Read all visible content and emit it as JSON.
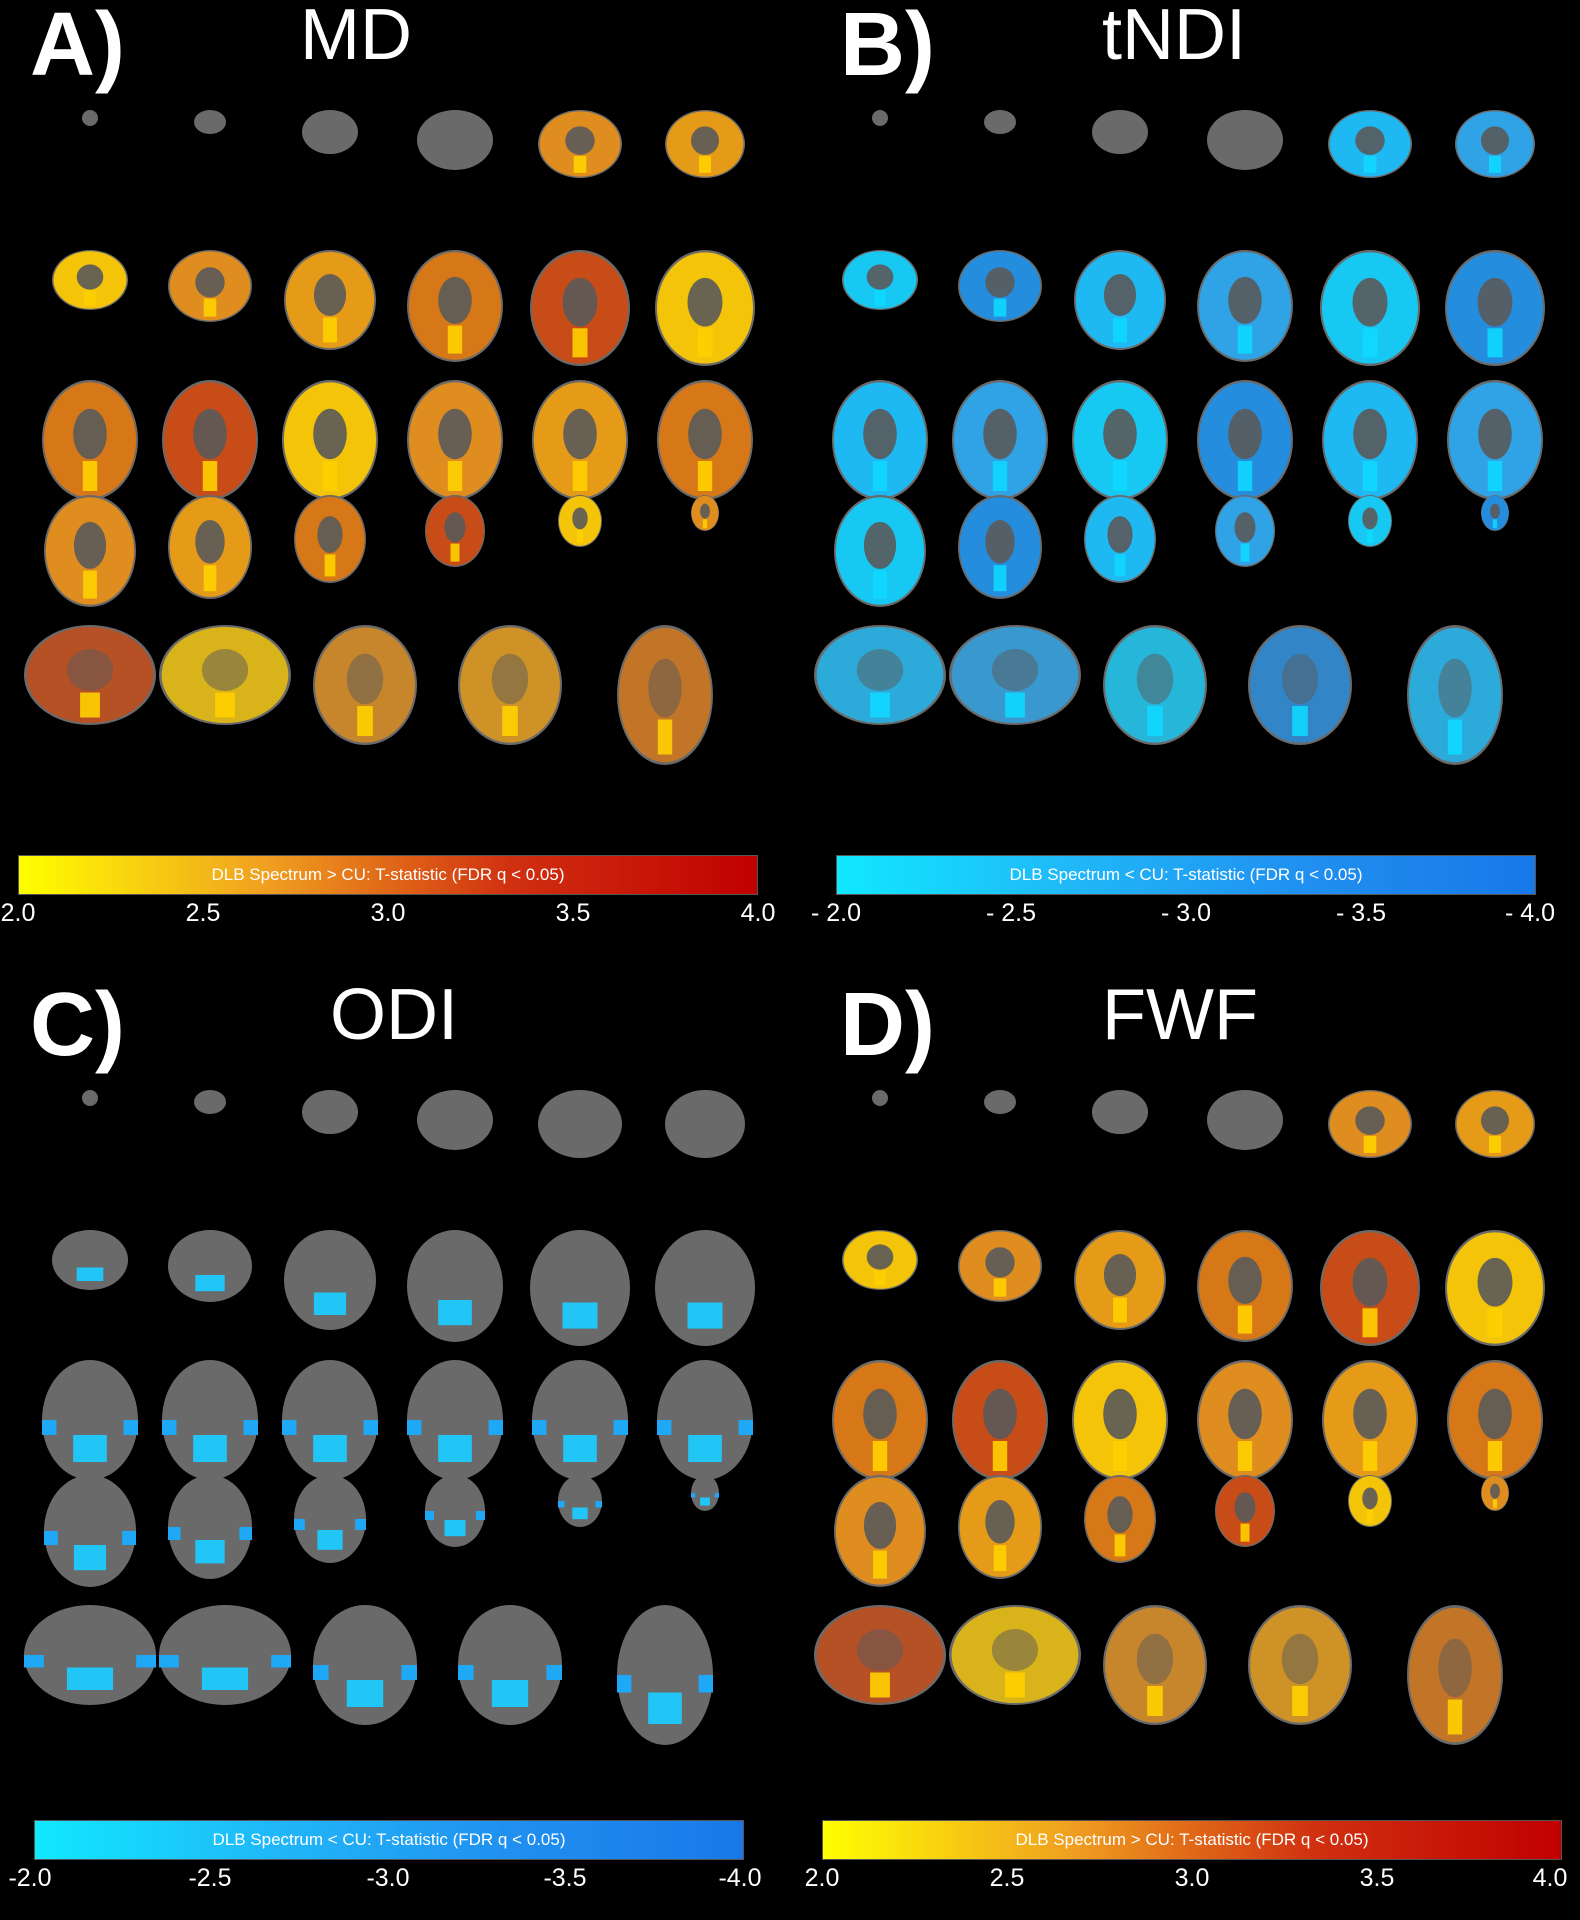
{
  "panels": [
    {
      "id": "a",
      "letter": "A)",
      "title": "MD",
      "palette": "warm",
      "colorbar_label": "DLB Spectrum > CU: T-statistic (FDR q < 0.05)",
      "ticks": [
        "2.0",
        "2.5",
        "3.0",
        "3.5",
        "4.0"
      ],
      "gradient": [
        "#ffff00",
        "#f0a020",
        "#d03010",
        "#c00000"
      ]
    },
    {
      "id": "b",
      "letter": "B)",
      "title": "tNDI",
      "palette": "cool",
      "colorbar_label": "DLB Spectrum < CU: T-statistic (FDR q < 0.05)",
      "ticks": [
        "- 2.0",
        "- 2.5",
        "- 3.0",
        "- 3.5",
        "- 4.0"
      ],
      "gradient": [
        "#10e8ff",
        "#20b8f8",
        "#2090f0",
        "#1878e8"
      ]
    },
    {
      "id": "c",
      "letter": "C)",
      "title": "ODI",
      "palette": "sparse-cool",
      "colorbar_label": "DLB Spectrum < CU: T-statistic (FDR q < 0.05)",
      "ticks": [
        "-2.0",
        "-2.5",
        "-3.0",
        "-3.5",
        "-4.0"
      ],
      "gradient": [
        "#10e8ff",
        "#20b8f8",
        "#2090f0",
        "#1878e8"
      ]
    },
    {
      "id": "d",
      "letter": "D)",
      "title": "FWF",
      "palette": "warm",
      "colorbar_label": "DLB Spectrum > CU: T-statistic (FDR q < 0.05)",
      "ticks": [
        "2.0",
        "2.5",
        "3.0",
        "3.5",
        "4.0"
      ],
      "gradient": [
        "#ffff00",
        "#f0a020",
        "#d03010",
        "#c00000"
      ]
    }
  ]
}
